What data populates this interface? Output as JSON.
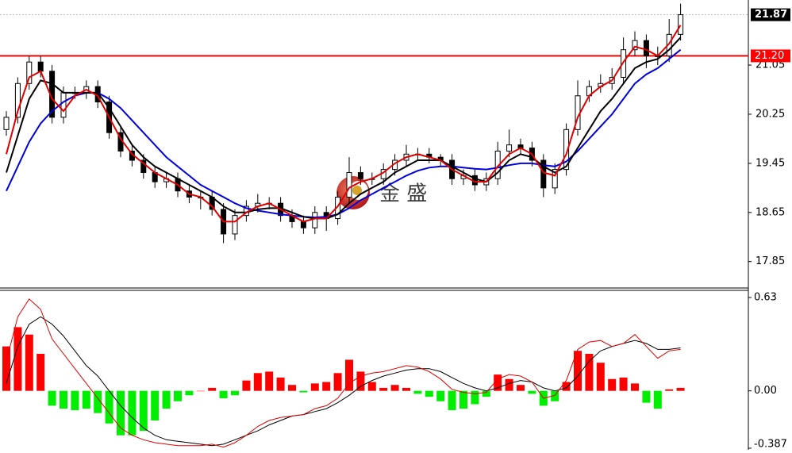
{
  "chart_data": [
    {
      "type": "candlestick",
      "watermark": "金 盛",
      "ylim": [
        17.42,
        22.11
      ],
      "yticks": [
        21.05,
        20.25,
        19.45,
        18.65,
        17.85
      ],
      "last_price": 21.87,
      "hline": {
        "value": 21.2,
        "label": "21.20",
        "color": "#ff0000"
      },
      "up_color": "#ffffff",
      "down_color": "#000000",
      "open": [
        20.0,
        20.2,
        20.75,
        21.1,
        20.95,
        20.2,
        20.6,
        20.6,
        20.7,
        20.45,
        19.95,
        19.65,
        19.5,
        19.3,
        19.15,
        19.2,
        19.0,
        18.9,
        18.9,
        18.7,
        18.3,
        18.6,
        18.75,
        18.8,
        18.8,
        18.6,
        18.5,
        18.4,
        18.65,
        18.55,
        18.9,
        19.3,
        19.2,
        19.2,
        19.35,
        19.5,
        19.6,
        19.6,
        19.55,
        19.5,
        19.2,
        19.25,
        19.1,
        19.2,
        19.65,
        19.75,
        19.7,
        19.5,
        19.05,
        19.35,
        20.0,
        20.55,
        20.7,
        20.75,
        20.85,
        21.3,
        21.45,
        21.2,
        21.2,
        21.55
      ],
      "high": [
        20.3,
        20.85,
        21.2,
        21.2,
        21.05,
        20.7,
        20.7,
        20.8,
        20.8,
        20.55,
        20.05,
        19.75,
        19.6,
        19.4,
        19.3,
        19.3,
        19.1,
        19.0,
        19.0,
        18.8,
        18.7,
        18.85,
        18.95,
        18.9,
        18.9,
        18.7,
        18.6,
        18.75,
        18.75,
        19.0,
        19.55,
        19.4,
        19.3,
        19.45,
        19.6,
        19.75,
        19.7,
        19.7,
        19.6,
        19.6,
        19.35,
        19.35,
        19.3,
        19.8,
        20.0,
        19.85,
        19.8,
        19.6,
        19.45,
        20.1,
        20.8,
        20.8,
        20.9,
        21.0,
        21.5,
        21.6,
        21.55,
        21.35,
        21.8,
        22.05
      ],
      "low": [
        19.9,
        20.1,
        20.65,
        20.85,
        20.1,
        20.1,
        20.5,
        20.5,
        20.35,
        19.85,
        19.55,
        19.4,
        19.2,
        19.05,
        19.05,
        18.9,
        18.8,
        18.7,
        18.6,
        18.15,
        18.2,
        18.5,
        18.65,
        18.7,
        18.5,
        18.4,
        18.3,
        18.3,
        18.35,
        18.45,
        18.8,
        19.1,
        19.1,
        19.1,
        19.25,
        19.4,
        19.5,
        19.45,
        19.4,
        19.1,
        19.1,
        19.0,
        19.0,
        19.1,
        19.55,
        19.6,
        19.4,
        18.9,
        18.95,
        19.25,
        19.9,
        20.45,
        20.6,
        20.65,
        20.75,
        21.2,
        21.0,
        21.05,
        21.1,
        21.45
      ],
      "close": [
        20.2,
        20.75,
        21.1,
        20.95,
        20.2,
        20.6,
        20.6,
        20.7,
        20.45,
        19.95,
        19.65,
        19.5,
        19.3,
        19.15,
        19.2,
        19.0,
        18.9,
        18.9,
        18.7,
        18.3,
        18.6,
        18.75,
        18.8,
        18.8,
        18.6,
        18.5,
        18.4,
        18.65,
        18.55,
        18.9,
        19.3,
        19.2,
        19.2,
        19.35,
        19.5,
        19.6,
        19.6,
        19.55,
        19.5,
        19.2,
        19.25,
        19.1,
        19.2,
        19.65,
        19.75,
        19.7,
        19.5,
        19.05,
        19.35,
        20.0,
        20.55,
        20.7,
        20.75,
        20.85,
        21.3,
        21.45,
        21.2,
        21.2,
        21.55,
        21.87
      ],
      "lines": [
        {
          "color": "#0000dd",
          "values": [
            19.0,
            19.4,
            19.8,
            20.1,
            20.3,
            20.45,
            20.55,
            20.6,
            20.6,
            20.5,
            20.35,
            20.15,
            19.95,
            19.75,
            19.55,
            19.4,
            19.25,
            19.1,
            19.0,
            18.9,
            18.8,
            18.72,
            18.68,
            18.65,
            18.62,
            18.6,
            18.58,
            18.57,
            18.58,
            18.62,
            18.72,
            18.85,
            18.95,
            19.05,
            19.15,
            19.25,
            19.33,
            19.38,
            19.4,
            19.4,
            19.38,
            19.36,
            19.35,
            19.38,
            19.42,
            19.45,
            19.45,
            19.42,
            19.4,
            19.48,
            19.65,
            19.85,
            20.05,
            20.25,
            20.5,
            20.75,
            20.9,
            21.0,
            21.15,
            21.3
          ]
        },
        {
          "color": "#000000",
          "values": [
            19.3,
            19.9,
            20.5,
            20.8,
            20.75,
            20.6,
            20.6,
            20.6,
            20.6,
            20.35,
            20.05,
            19.75,
            19.55,
            19.4,
            19.3,
            19.2,
            19.1,
            19.0,
            18.9,
            18.75,
            18.65,
            18.65,
            18.7,
            18.72,
            18.72,
            18.65,
            18.58,
            18.55,
            18.55,
            18.62,
            18.8,
            18.95,
            19.05,
            19.15,
            19.3,
            19.4,
            19.5,
            19.5,
            19.5,
            19.4,
            19.3,
            19.2,
            19.15,
            19.3,
            19.5,
            19.6,
            19.55,
            19.4,
            19.3,
            19.4,
            19.7,
            20.0,
            20.3,
            20.5,
            20.75,
            21.0,
            21.1,
            21.15,
            21.3,
            21.5
          ]
        },
        {
          "color": "#e00000",
          "values": [
            19.6,
            20.3,
            20.85,
            20.95,
            20.5,
            20.3,
            20.55,
            20.65,
            20.55,
            20.2,
            19.85,
            19.6,
            19.45,
            19.3,
            19.2,
            19.1,
            18.95,
            18.9,
            18.75,
            18.5,
            18.5,
            18.65,
            18.75,
            18.8,
            18.7,
            18.6,
            18.5,
            18.55,
            18.55,
            18.75,
            19.05,
            19.15,
            19.2,
            19.3,
            19.45,
            19.55,
            19.6,
            19.55,
            19.5,
            19.35,
            19.25,
            19.15,
            19.15,
            19.4,
            19.6,
            19.7,
            19.6,
            19.3,
            19.25,
            19.6,
            20.2,
            20.55,
            20.7,
            20.8,
            21.1,
            21.35,
            21.3,
            21.2,
            21.4,
            21.7
          ]
        }
      ]
    },
    {
      "type": "macd",
      "ylim": [
        -0.398,
        0.673
      ],
      "yticks": [
        0.63,
        {
          "value": 0,
          "label": "0.00"
        },
        -0.387
      ],
      "up_color": "#ff0000",
      "down_color": "#00ee00",
      "histogram": [
        0.3,
        0.43,
        0.38,
        0.25,
        -0.1,
        -0.12,
        -0.13,
        -0.12,
        -0.15,
        -0.22,
        -0.3,
        -0.3,
        -0.27,
        -0.2,
        -0.12,
        -0.07,
        -0.03,
        0.0,
        0.02,
        -0.05,
        -0.03,
        0.07,
        0.12,
        0.13,
        0.09,
        0.04,
        -0.01,
        0.05,
        0.06,
        0.12,
        0.21,
        0.13,
        0.06,
        0.02,
        0.04,
        0.02,
        -0.02,
        -0.04,
        -0.07,
        -0.13,
        -0.12,
        -0.09,
        -0.04,
        0.11,
        0.08,
        0.04,
        -0.02,
        -0.1,
        -0.07,
        0.06,
        0.27,
        0.25,
        0.19,
        0.08,
        0.09,
        0.05,
        -0.08,
        -0.12,
        0.01,
        0.02
      ],
      "lines": [
        {
          "color": "#000000",
          "values": [
            0.05,
            0.3,
            0.45,
            0.5,
            0.45,
            0.37,
            0.27,
            0.17,
            0.1,
            0.0,
            -0.1,
            -0.18,
            -0.25,
            -0.3,
            -0.33,
            -0.34,
            -0.35,
            -0.36,
            -0.37,
            -0.36,
            -0.33,
            -0.3,
            -0.27,
            -0.23,
            -0.2,
            -0.17,
            -0.16,
            -0.14,
            -0.12,
            -0.08,
            -0.03,
            0.03,
            0.07,
            0.1,
            0.12,
            0.14,
            0.15,
            0.15,
            0.13,
            0.09,
            0.05,
            0.02,
            0.0,
            0.02,
            0.05,
            0.07,
            0.06,
            0.02,
            0.0,
            0.02,
            0.1,
            0.2,
            0.27,
            0.3,
            0.32,
            0.34,
            0.32,
            0.28,
            0.28,
            0.29
          ]
        },
        {
          "color": "#e00000",
          "values": [
            0.2,
            0.5,
            0.62,
            0.55,
            0.35,
            0.25,
            0.15,
            0.05,
            -0.05,
            -0.15,
            -0.25,
            -0.3,
            -0.33,
            -0.35,
            -0.36,
            -0.37,
            -0.37,
            -0.37,
            -0.36,
            -0.38,
            -0.35,
            -0.3,
            -0.24,
            -0.2,
            -0.18,
            -0.17,
            -0.16,
            -0.12,
            -0.1,
            -0.05,
            0.05,
            0.1,
            0.12,
            0.13,
            0.15,
            0.17,
            0.16,
            0.13,
            0.08,
            0.01,
            -0.01,
            -0.02,
            -0.01,
            0.08,
            0.11,
            0.1,
            0.06,
            -0.05,
            -0.03,
            0.07,
            0.28,
            0.33,
            0.34,
            0.3,
            0.32,
            0.38,
            0.3,
            0.22,
            0.27,
            0.28
          ]
        }
      ]
    }
  ]
}
